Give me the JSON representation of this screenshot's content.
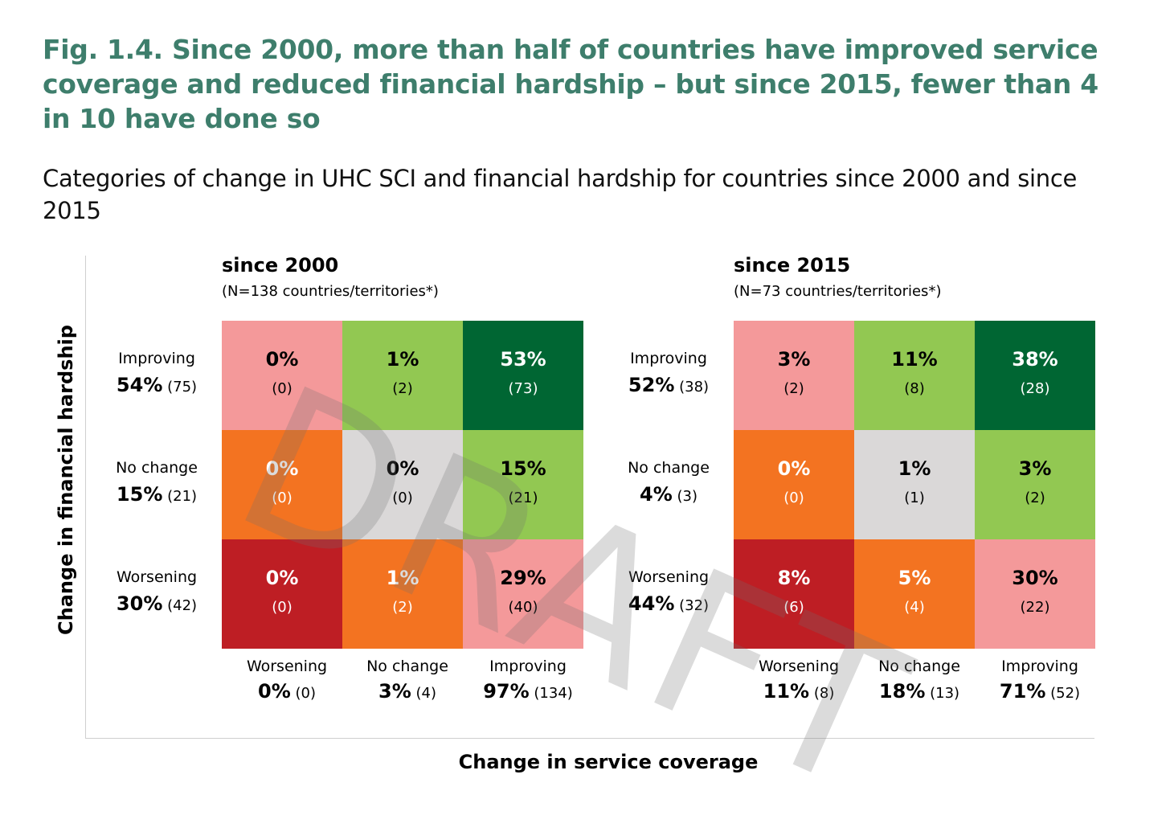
{
  "title": "Fig. 1.4. Since 2000, more than half of countries have improved service coverage and reduced financial hardship – but since 2015, fewer than 4 in 10 have done so",
  "subtitle": "Categories of change in UHC SCI and financial hardship for countries since 2000 and since 2015",
  "watermark": "DRAFT",
  "colors": {
    "pink": "#F4999A",
    "lightgreen": "#92C852",
    "darkgreen": "#006633",
    "orange": "#F37321",
    "grey": "#DAD8D8",
    "red": "#BE1E24"
  },
  "chart_data": {
    "type": "heatmap",
    "xlabel": "Change in service coverage",
    "ylabel": "Change in financial hardship",
    "rows": [
      "Improving",
      "No change",
      "Worsening"
    ],
    "columns": [
      "Worsening",
      "No change",
      "Improving"
    ],
    "cell_colors": [
      [
        "pink",
        "lightgreen",
        "darkgreen"
      ],
      [
        "orange",
        "grey",
        "lightgreen"
      ],
      [
        "red",
        "orange",
        "pink"
      ]
    ],
    "panels": [
      {
        "title": "since 2000",
        "n_label": "(N=138 countries/territories*)",
        "cells": [
          [
            {
              "pct": "0%",
              "count": "(0)"
            },
            {
              "pct": "1%",
              "count": "(2)"
            },
            {
              "pct": "53%",
              "count": "(73)"
            }
          ],
          [
            {
              "pct": "0%",
              "count": "(0)"
            },
            {
              "pct": "0%",
              "count": "(0)"
            },
            {
              "pct": "15%",
              "count": "(21)"
            }
          ],
          [
            {
              "pct": "0%",
              "count": "(0)"
            },
            {
              "pct": "1%",
              "count": "(2)"
            },
            {
              "pct": "29%",
              "count": "(40)"
            }
          ]
        ],
        "row_totals": [
          {
            "pct": "54%",
            "count": "(75)"
          },
          {
            "pct": "15%",
            "count": "(21)"
          },
          {
            "pct": "30%",
            "count": "(42)"
          }
        ],
        "col_totals": [
          {
            "pct": "0%",
            "count": "(0)"
          },
          {
            "pct": "3%",
            "count": "(4)"
          },
          {
            "pct": "97%",
            "count": "(134)"
          }
        ]
      },
      {
        "title": "since 2015",
        "n_label": "(N=73 countries/territories*)",
        "cells": [
          [
            {
              "pct": "3%",
              "count": "(2)"
            },
            {
              "pct": "11%",
              "count": "(8)"
            },
            {
              "pct": "38%",
              "count": "(28)"
            }
          ],
          [
            {
              "pct": "0%",
              "count": "(0)"
            },
            {
              "pct": "1%",
              "count": "(1)"
            },
            {
              "pct": "3%",
              "count": "(2)"
            }
          ],
          [
            {
              "pct": "8%",
              "count": "(6)"
            },
            {
              "pct": "5%",
              "count": "(4)"
            },
            {
              "pct": "30%",
              "count": "(22)"
            }
          ]
        ],
        "row_totals": [
          {
            "pct": "52%",
            "count": "(38)"
          },
          {
            "pct": "4%",
            "count": "(3)"
          },
          {
            "pct": "44%",
            "count": "(32)"
          }
        ],
        "col_totals": [
          {
            "pct": "11%",
            "count": "(8)"
          },
          {
            "pct": "18%",
            "count": "(13)"
          },
          {
            "pct": "71%",
            "count": "(52)"
          }
        ]
      }
    ]
  }
}
